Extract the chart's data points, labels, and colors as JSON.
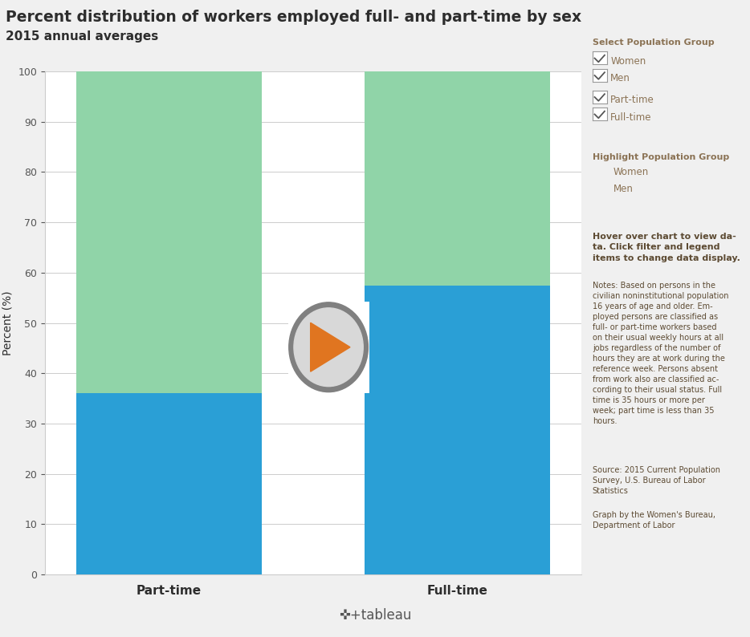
{
  "title": "Percent distribution of workers employed full- and part-time by sex",
  "subtitle": "2015 annual averages",
  "categories": [
    "Part-time",
    "Full-time"
  ],
  "men_values": [
    36.0,
    57.4
  ],
  "women_values": [
    64.0,
    42.6
  ],
  "color_men": "#2a9fd6",
  "color_women": "#90d4a8",
  "ylabel": "Percent (%)",
  "ylim": [
    0,
    100
  ],
  "title_color": "#2d2d2d",
  "bg_color": "#f0f0f0",
  "plot_bg_color": "#ffffff",
  "sidebar_color": "#8b7355",
  "hover_bold_color": "#5c4a32",
  "notes_color": "#5c4a32",
  "footer_bg": "#d8d8d8",
  "footer_text_color": "#666666"
}
